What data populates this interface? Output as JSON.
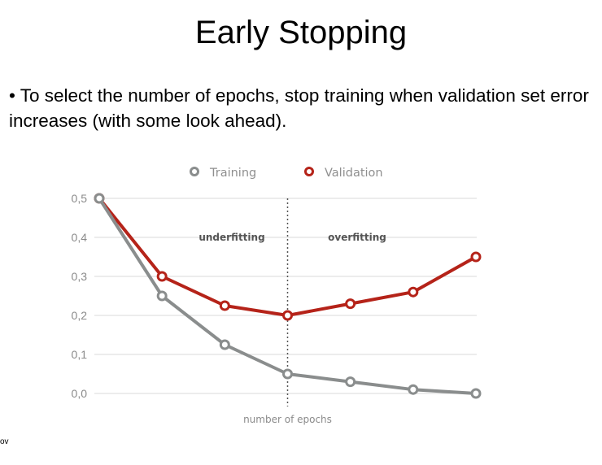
{
  "slide": {
    "title": "Early Stopping",
    "bullet": "• To select the number of epochs, stop training when validation set error increases (with some look ahead).",
    "footer_fragment": "ov"
  },
  "colors": {
    "training": "#8a8d8d",
    "validation": "#b52319",
    "grid": "#d8d8d8",
    "divider": "#555555"
  },
  "chart_data": {
    "type": "line",
    "x": [
      1,
      2,
      3,
      4,
      5,
      6,
      7
    ],
    "xlabel": "number of epochs",
    "ylabel": "",
    "ylim": [
      0,
      0.5
    ],
    "yticks": [
      "0,0",
      "0,1",
      "0,2",
      "0,3",
      "0,4",
      "0,5"
    ],
    "grid": true,
    "legend_position": "top-center",
    "series": [
      {
        "name": "Training",
        "color_key": "training",
        "values": [
          0.5,
          0.25,
          0.125,
          0.05,
          0.03,
          0.01,
          0.0
        ]
      },
      {
        "name": "Validation",
        "color_key": "validation",
        "values": [
          0.5,
          0.3,
          0.225,
          0.2,
          0.23,
          0.26,
          0.35
        ]
      }
    ],
    "divider_at_x": 4,
    "region_labels": {
      "left": "underfitting",
      "right": "overfitting"
    }
  }
}
